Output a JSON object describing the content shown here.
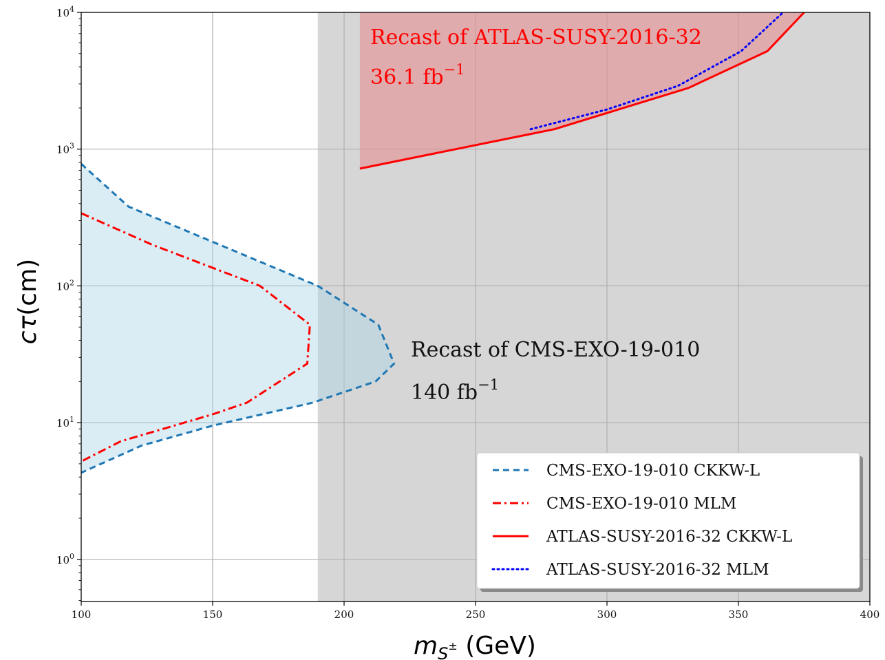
{
  "chart_data": {
    "type": "line",
    "xlabel": "m_{S±} (GeV)",
    "ylabel": "cτ(cm)",
    "xlim": [
      100,
      400
    ],
    "ylim": [
      0.5,
      10000
    ],
    "yscale": "log",
    "grid": true,
    "legend_position": "lower-right",
    "x_ticks": [
      100,
      150,
      200,
      250,
      300,
      350,
      400
    ],
    "y_ticks": [
      1,
      10,
      100,
      1000,
      10000
    ],
    "y_tick_labels": [
      {
        "base": "10",
        "exp": "0"
      },
      {
        "base": "10",
        "exp": "1"
      },
      {
        "base": "10",
        "exp": "2"
      },
      {
        "base": "10",
        "exp": "3"
      },
      {
        "base": "10",
        "exp": "4"
      }
    ],
    "excluded_region": {
      "x_from": 190,
      "x_to": 400,
      "color": "#d6d6d6"
    },
    "annotations": [
      {
        "line1": "Recast of ATLAS-SUSY-2016-32",
        "line2_base": "36.1 fb",
        "line2_exp": "−1",
        "color": "#ff0000"
      },
      {
        "line1": "Recast of CMS-EXO-19-010",
        "line2_base": "140 fb",
        "line2_exp": "−1",
        "color": "#111111"
      }
    ],
    "series": [
      {
        "name": "CMS-EXO-19-010 CKKW-L",
        "color": "#1f77b4",
        "style": "dashed",
        "fill": "#add8e6",
        "x": [
          100,
          118,
          150,
          190,
          213,
          219,
          212,
          188,
          150,
          123,
          100
        ],
        "y": [
          780,
          380,
          210,
          100,
          52,
          27,
          20,
          14,
          9.5,
          6.8,
          4.3
        ]
      },
      {
        "name": "CMS-EXO-19-010 MLM",
        "color": "#ff0000",
        "style": "dashdot",
        "x": [
          100,
          127,
          168,
          187,
          186,
          163,
          150,
          115,
          100
        ],
        "y": [
          340,
          200,
          100,
          52,
          27,
          14,
          11.5,
          7.3,
          5.2
        ]
      },
      {
        "name": "ATLAS-SUSY-2016-32 CKKW-L",
        "color": "#ff0000",
        "style": "solid",
        "fill": "#e8898a",
        "x": [
          206,
          280,
          331,
          361,
          375
        ],
        "y": [
          720,
          1400,
          2800,
          5200,
          10000
        ]
      },
      {
        "name": "ATLAS-SUSY-2016-32 MLM",
        "color": "#0000ff",
        "style": "dotted",
        "x": [
          271,
          300,
          327,
          351,
          367
        ],
        "y": [
          1400,
          1950,
          2900,
          5200,
          10000
        ]
      }
    ]
  }
}
